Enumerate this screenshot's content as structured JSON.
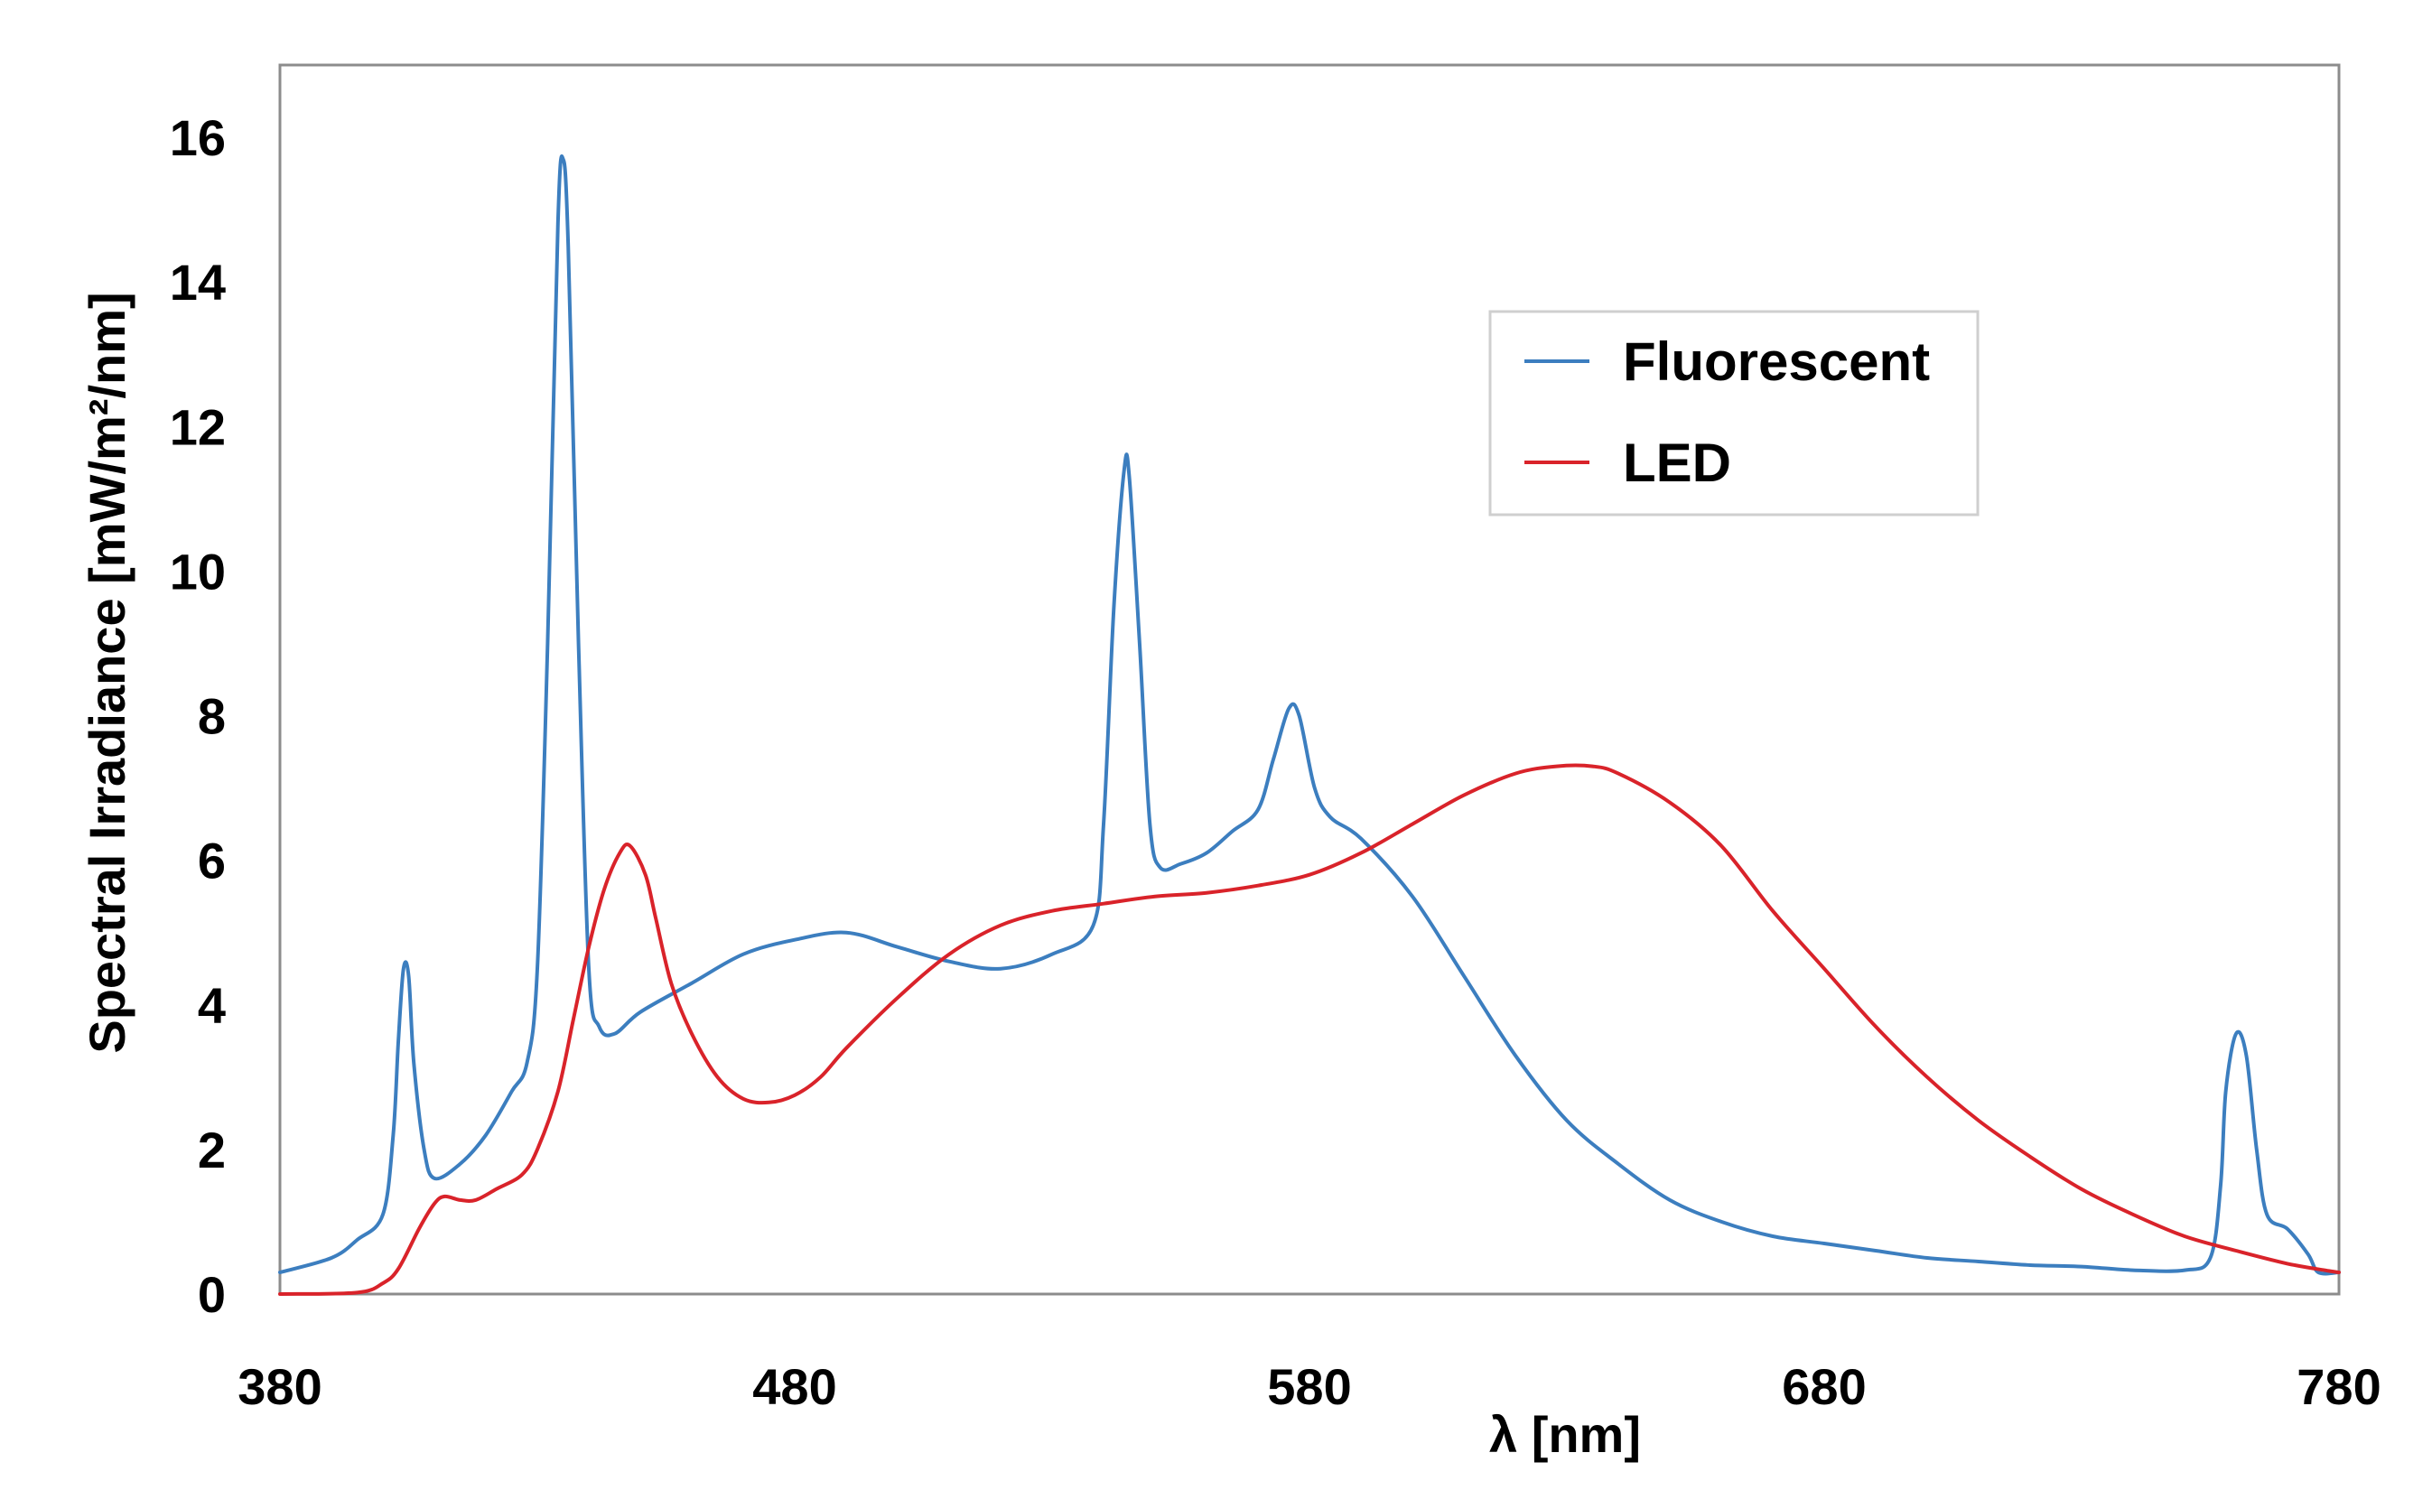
{
  "chart_data": {
    "type": "line",
    "xlabel": "λ [nm]",
    "ylabel": "Spectral Irradiance [mW/m²/nm]",
    "xlim": [
      380,
      780
    ],
    "ylim": [
      0,
      17
    ],
    "xticks": [
      380,
      480,
      580,
      680,
      780
    ],
    "yticks": [
      0,
      2,
      4,
      6,
      8,
      10,
      12,
      14,
      16
    ],
    "grid": false,
    "legend_position": "top-right",
    "series": [
      {
        "name": "Fluorescent",
        "color": "#3c7ebf",
        "points": [
          [
            380,
            0.3
          ],
          [
            390,
            0.5
          ],
          [
            395,
            0.75
          ],
          [
            400,
            1.1
          ],
          [
            402,
            2.2
          ],
          [
            403,
            3.5
          ],
          [
            404,
            4.5
          ],
          [
            405,
            4.4
          ],
          [
            406,
            3.2
          ],
          [
            408,
            2.0
          ],
          [
            410,
            1.6
          ],
          [
            415,
            1.8
          ],
          [
            420,
            2.2
          ],
          [
            425,
            2.8
          ],
          [
            428,
            3.2
          ],
          [
            430,
            4.5
          ],
          [
            432,
            9.0
          ],
          [
            434,
            14.8
          ],
          [
            435,
            15.7
          ],
          [
            436,
            14.5
          ],
          [
            438,
            9.0
          ],
          [
            440,
            4.5
          ],
          [
            442,
            3.7
          ],
          [
            445,
            3.6
          ],
          [
            450,
            3.9
          ],
          [
            460,
            4.3
          ],
          [
            470,
            4.7
          ],
          [
            480,
            4.9
          ],
          [
            490,
            5.0
          ],
          [
            500,
            4.8
          ],
          [
            510,
            4.6
          ],
          [
            520,
            4.5
          ],
          [
            530,
            4.7
          ],
          [
            538,
            5.1
          ],
          [
            540,
            6.5
          ],
          [
            542,
            9.5
          ],
          [
            544,
            11.4
          ],
          [
            545,
            11.3
          ],
          [
            547,
            9.0
          ],
          [
            549,
            6.5
          ],
          [
            551,
            5.9
          ],
          [
            555,
            5.95
          ],
          [
            560,
            6.1
          ],
          [
            565,
            6.4
          ],
          [
            570,
            6.7
          ],
          [
            573,
            7.4
          ],
          [
            576,
            8.1
          ],
          [
            578,
            8.0
          ],
          [
            581,
            7.0
          ],
          [
            584,
            6.6
          ],
          [
            590,
            6.3
          ],
          [
            600,
            5.5
          ],
          [
            610,
            4.4
          ],
          [
            620,
            3.3
          ],
          [
            630,
            2.4
          ],
          [
            640,
            1.8
          ],
          [
            650,
            1.3
          ],
          [
            660,
            1.0
          ],
          [
            670,
            0.8
          ],
          [
            680,
            0.7
          ],
          [
            690,
            0.6
          ],
          [
            700,
            0.5
          ],
          [
            710,
            0.45
          ],
          [
            720,
            0.4
          ],
          [
            730,
            0.38
          ],
          [
            740,
            0.33
          ],
          [
            750,
            0.33
          ],
          [
            755,
            0.5
          ],
          [
            757,
            1.5
          ],
          [
            758,
            2.8
          ],
          [
            760,
            3.6
          ],
          [
            762,
            3.3
          ],
          [
            764,
            2.0
          ],
          [
            766,
            1.1
          ],
          [
            770,
            0.9
          ],
          [
            774,
            0.55
          ],
          [
            776,
            0.3
          ],
          [
            780,
            0.3
          ]
        ]
      },
      {
        "name": "LED",
        "color": "#d9232a",
        "points": [
          [
            380,
            0.0
          ],
          [
            395,
            0.02
          ],
          [
            400,
            0.15
          ],
          [
            403,
            0.35
          ],
          [
            407,
            0.9
          ],
          [
            410,
            1.25
          ],
          [
            412,
            1.35
          ],
          [
            415,
            1.3
          ],
          [
            418,
            1.3
          ],
          [
            422,
            1.45
          ],
          [
            427,
            1.65
          ],
          [
            430,
            2.0
          ],
          [
            434,
            2.8
          ],
          [
            437,
            3.8
          ],
          [
            440,
            4.8
          ],
          [
            443,
            5.6
          ],
          [
            446,
            6.1
          ],
          [
            448,
            6.2
          ],
          [
            451,
            5.8
          ],
          [
            453,
            5.2
          ],
          [
            456,
            4.3
          ],
          [
            460,
            3.6
          ],
          [
            465,
            3.0
          ],
          [
            470,
            2.7
          ],
          [
            475,
            2.65
          ],
          [
            480,
            2.75
          ],
          [
            485,
            3.0
          ],
          [
            490,
            3.4
          ],
          [
            500,
            4.1
          ],
          [
            510,
            4.7
          ],
          [
            520,
            5.1
          ],
          [
            530,
            5.3
          ],
          [
            540,
            5.4
          ],
          [
            550,
            5.5
          ],
          [
            560,
            5.55
          ],
          [
            570,
            5.65
          ],
          [
            580,
            5.8
          ],
          [
            590,
            6.1
          ],
          [
            600,
            6.5
          ],
          [
            610,
            6.9
          ],
          [
            620,
            7.2
          ],
          [
            628,
            7.3
          ],
          [
            635,
            7.3
          ],
          [
            640,
            7.2
          ],
          [
            650,
            6.8
          ],
          [
            660,
            6.2
          ],
          [
            670,
            5.3
          ],
          [
            680,
            4.5
          ],
          [
            690,
            3.7
          ],
          [
            700,
            3.0
          ],
          [
            710,
            2.4
          ],
          [
            720,
            1.9
          ],
          [
            730,
            1.45
          ],
          [
            740,
            1.1
          ],
          [
            750,
            0.8
          ],
          [
            760,
            0.6
          ],
          [
            770,
            0.42
          ],
          [
            778,
            0.32
          ],
          [
            780,
            0.3
          ]
        ]
      }
    ]
  }
}
